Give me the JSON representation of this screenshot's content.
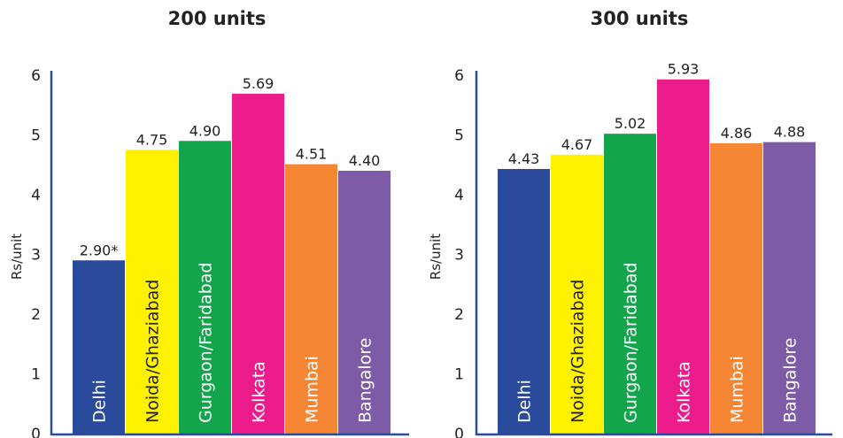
{
  "chart_data": [
    {
      "type": "bar",
      "title": "200 units",
      "ylabel": "Rs/unit",
      "ylim": [
        0,
        6
      ],
      "yticks": [
        "0",
        "1",
        "2",
        "3",
        "4",
        "5",
        "6"
      ],
      "categories": [
        "Delhi",
        "Noida/Ghaziabad",
        "Gurgaon/Faridabad",
        "Kolkata",
        "Mumbai",
        "Bangalore"
      ],
      "values": [
        2.9,
        4.75,
        4.9,
        5.69,
        4.51,
        4.4
      ],
      "value_labels": [
        "2.90*",
        "4.75",
        "4.90",
        "5.69",
        "4.51",
        "4.40"
      ],
      "colors": [
        "#2a4a9c",
        "#fef200",
        "#12a54b",
        "#ec1c8c",
        "#f58634",
        "#7d5ba6"
      ],
      "label_colors": [
        "#ffffff",
        "#222222",
        "#ffffff",
        "#ffffff",
        "#ffffff",
        "#ffffff"
      ],
      "axis_color": "#2a4a9c"
    },
    {
      "type": "bar",
      "title": "300 units",
      "ylabel": "Rs/unit",
      "ylim": [
        0,
        6
      ],
      "yticks": [
        "0",
        "1",
        "2",
        "3",
        "4",
        "5",
        "6"
      ],
      "categories": [
        "Delhi",
        "Noida/Ghaziabad",
        "Gurgaon/Faridabad",
        "Kolkata",
        "Mumbai",
        "Bangalore"
      ],
      "values": [
        4.43,
        4.67,
        5.02,
        5.93,
        4.86,
        4.88
      ],
      "value_labels": [
        "4.43",
        "4.67",
        "5.02",
        "5.93",
        "4.86",
        "4.88"
      ],
      "colors": [
        "#2a4a9c",
        "#fef200",
        "#12a54b",
        "#ec1c8c",
        "#f58634",
        "#7d5ba6"
      ],
      "label_colors": [
        "#ffffff",
        "#222222",
        "#ffffff",
        "#ffffff",
        "#ffffff",
        "#ffffff"
      ],
      "axis_color": "#2a4a9c"
    }
  ]
}
